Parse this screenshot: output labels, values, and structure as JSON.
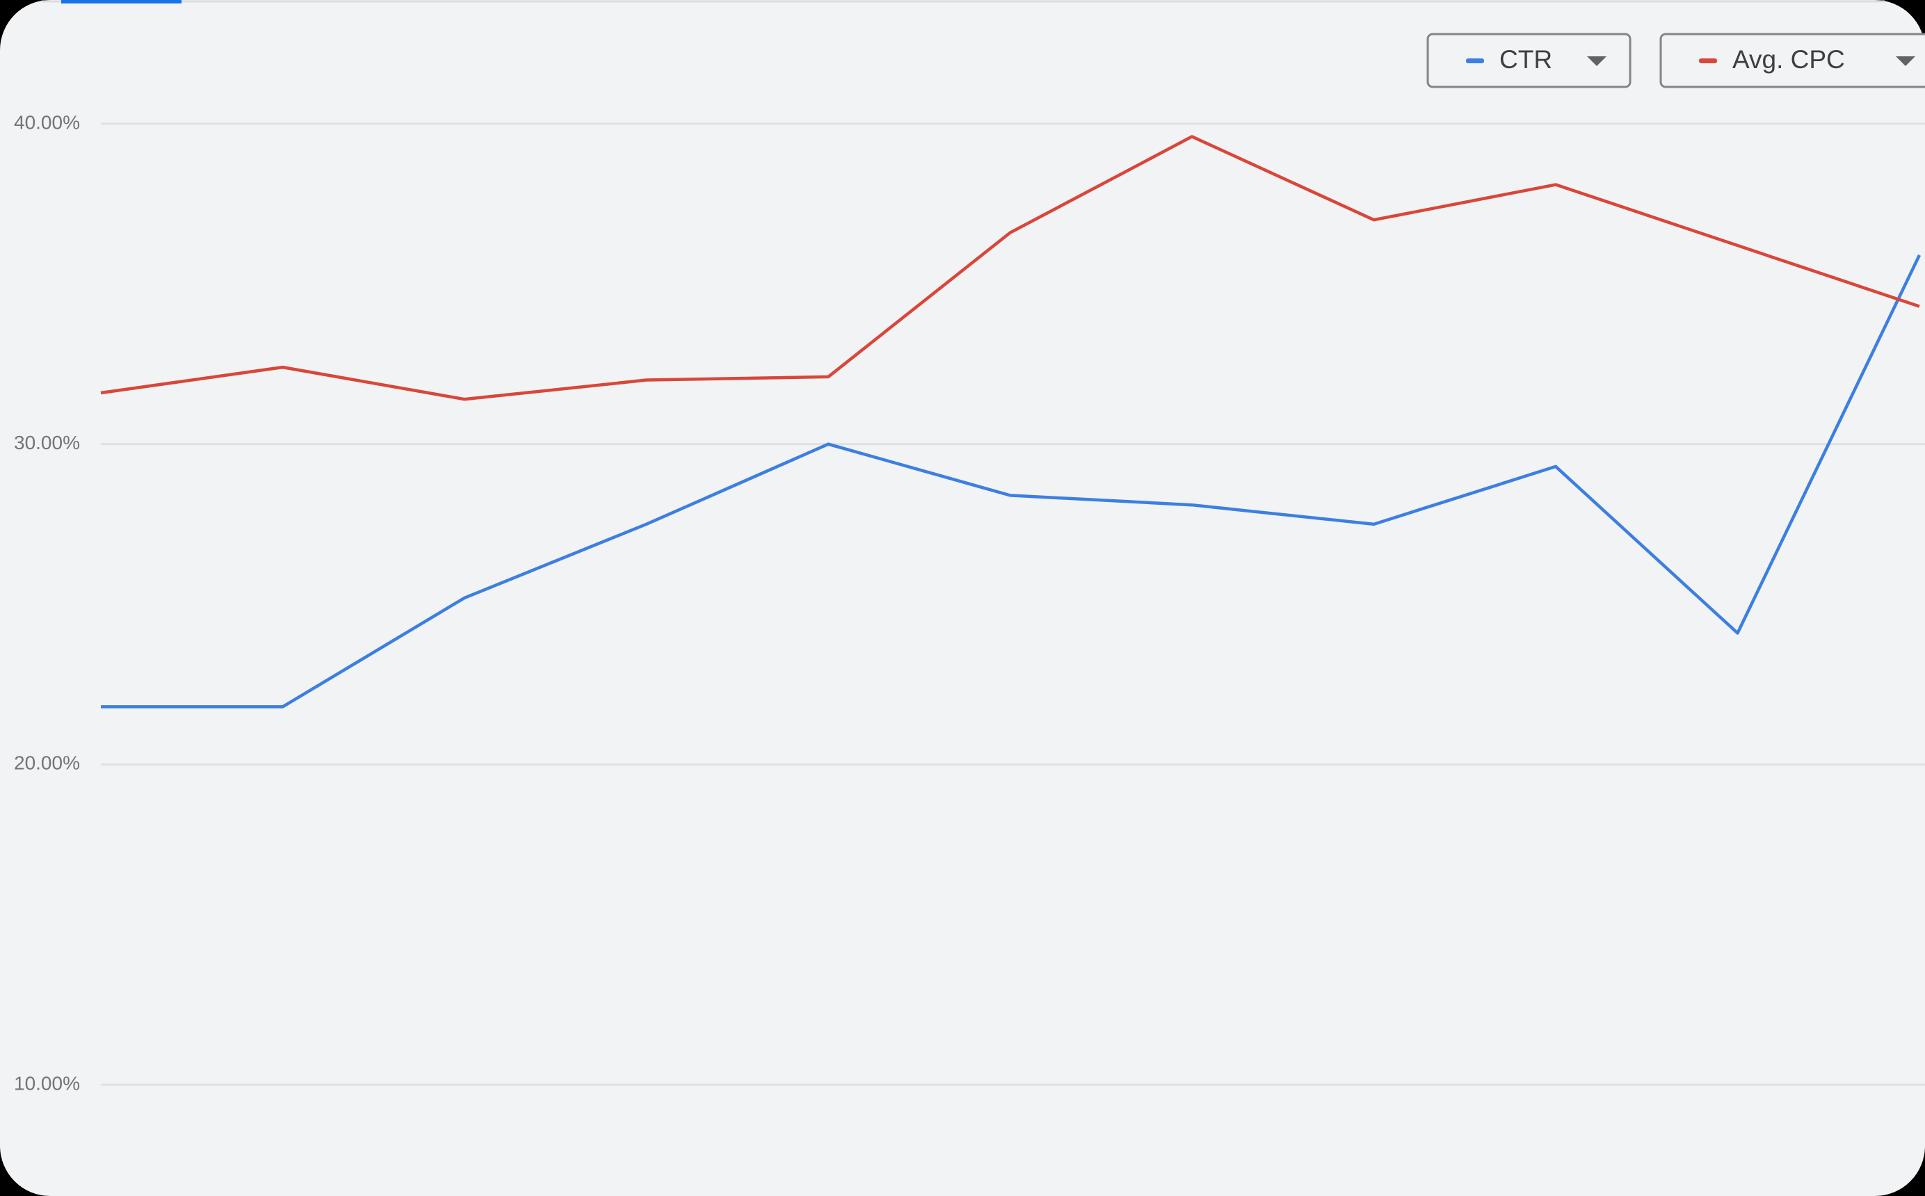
{
  "chart_data": {
    "type": "line",
    "categories": [
      null,
      null,
      null,
      null,
      null,
      null,
      null,
      null,
      null,
      null,
      null
    ],
    "series": [
      {
        "name": "CTR",
        "color": "#3d7fe0",
        "values": [
          21.8,
          21.8,
          25.2,
          27.5,
          30.0,
          28.4,
          28.1,
          27.5,
          29.3,
          24.1,
          35.9
        ]
      },
      {
        "name": "Avg. CPC",
        "color": "#d9463a",
        "values": [
          31.6,
          32.4,
          31.4,
          32.0,
          32.1,
          36.6,
          39.6,
          37.0,
          38.1,
          36.2,
          34.3
        ]
      }
    ],
    "ylim": [
      10,
      40
    ],
    "yticks": [
      {
        "value": 10,
        "label": "10.00%"
      },
      {
        "value": 20,
        "label": "20.00%"
      },
      {
        "value": 30,
        "label": "30.00%"
      },
      {
        "value": 40,
        "label": "40.00%"
      }
    ],
    "grid": true
  }
}
